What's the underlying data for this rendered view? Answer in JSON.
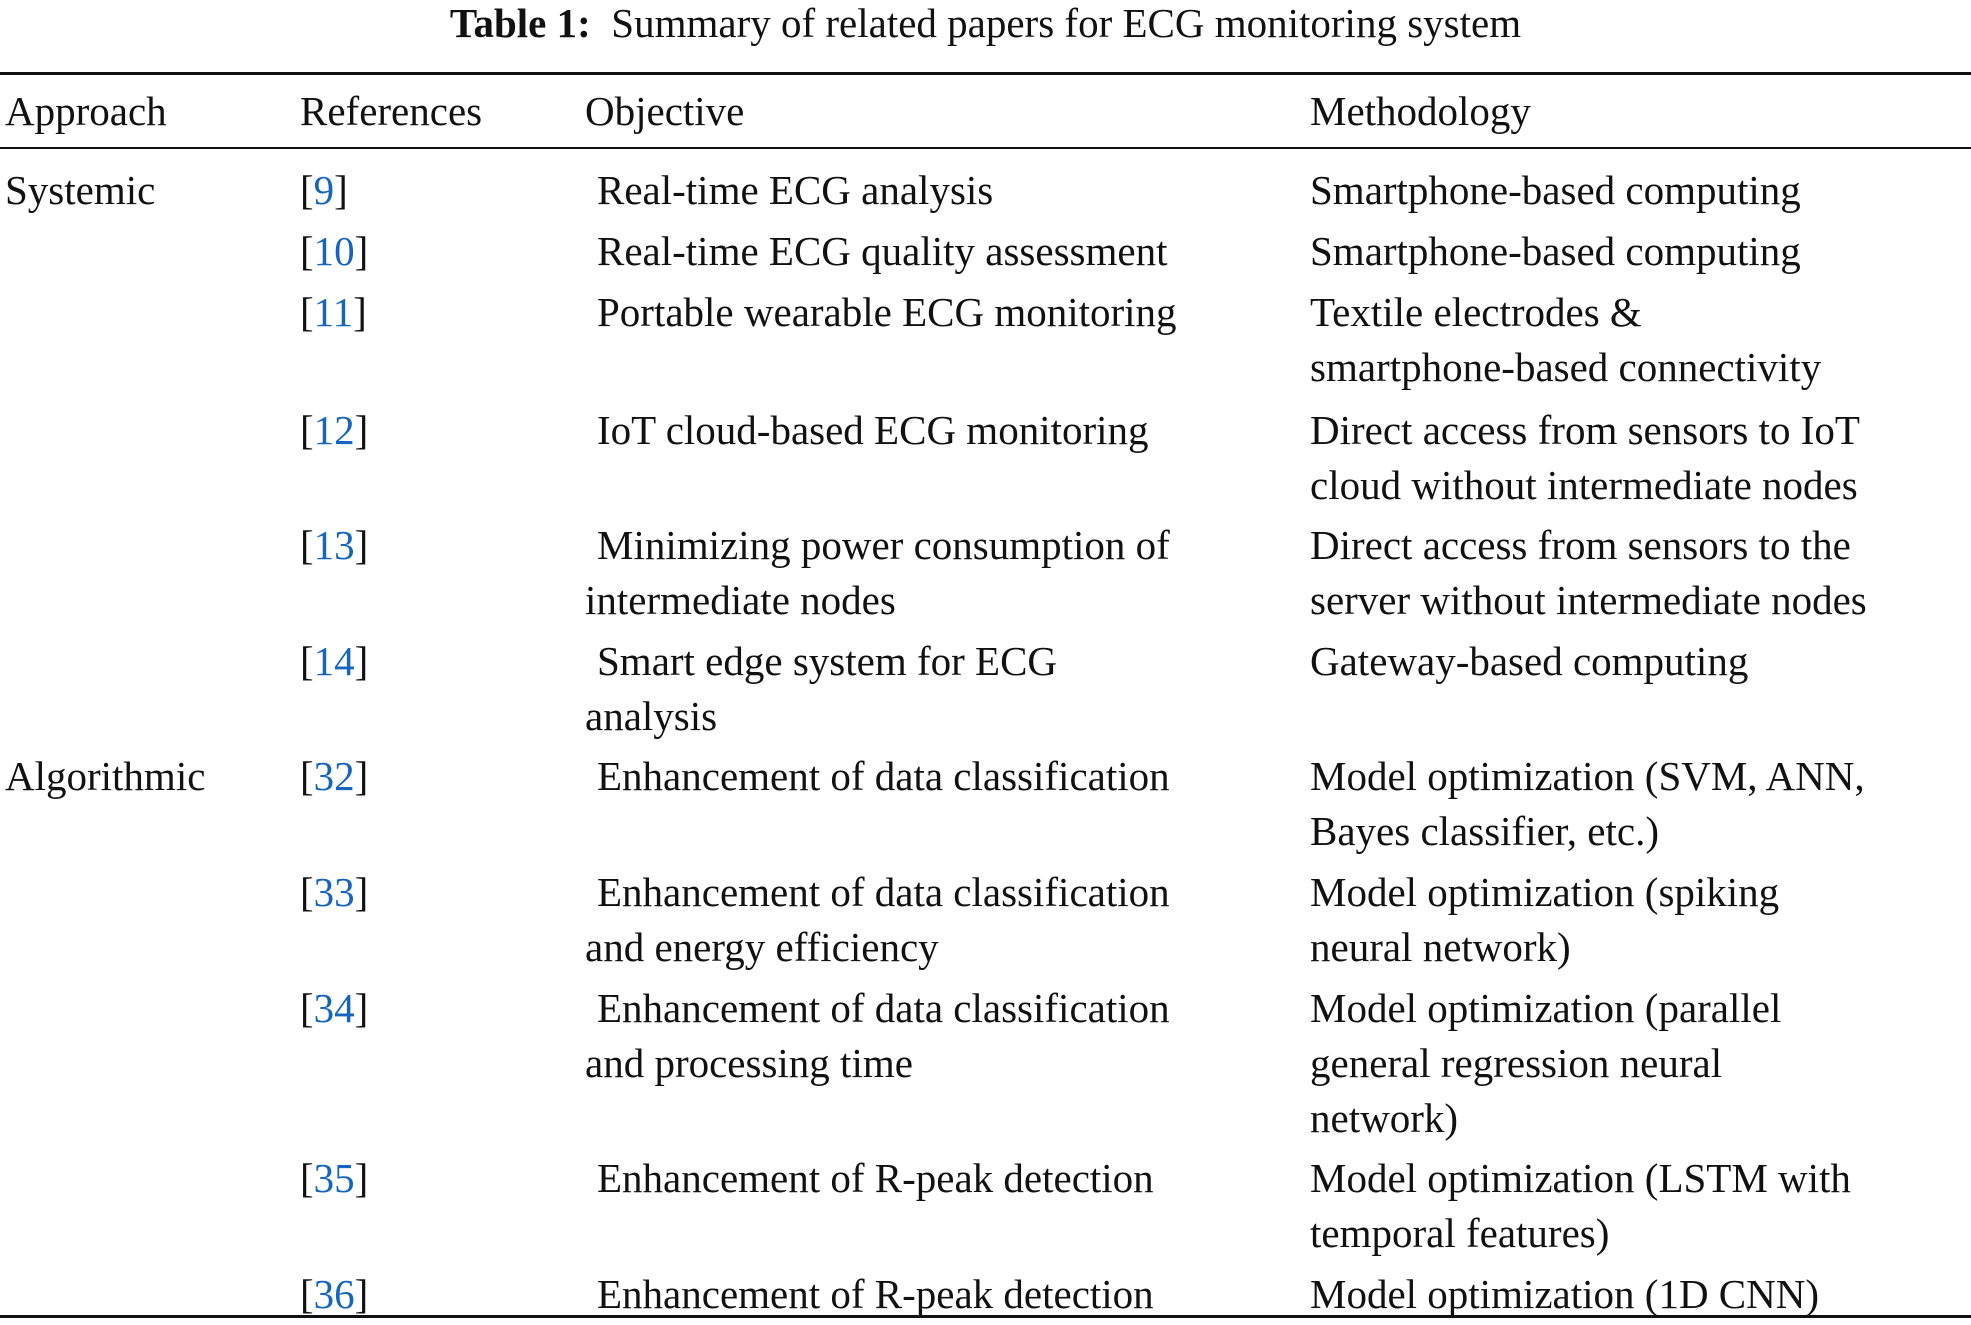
{
  "title": {
    "label": "Table 1:",
    "text": "Summary of related papers for ECG monitoring system"
  },
  "table": {
    "headers": {
      "approach": "Approach",
      "references": "References",
      "objective": "Objective",
      "methodology": "Methodology"
    },
    "groups": [
      {
        "approach": "Systemic"
      },
      {
        "approach": "Algorithmic"
      }
    ],
    "rows": [
      {
        "ref": "9",
        "objective": [
          "Real-time ECG analysis"
        ],
        "methodology": [
          "Smartphone-based computing"
        ]
      },
      {
        "ref": "10",
        "objective": [
          "Real-time ECG quality assessment"
        ],
        "methodology": [
          "Smartphone-based computing"
        ]
      },
      {
        "ref": "11",
        "objective": [
          "Portable wearable ECG monitoring"
        ],
        "methodology": [
          "Textile electrodes &",
          "smartphone-based connectivity"
        ]
      },
      {
        "ref": "12",
        "objective": [
          "IoT cloud-based ECG monitoring"
        ],
        "methodology": [
          "Direct access from sensors to IoT",
          "cloud without intermediate nodes"
        ]
      },
      {
        "ref": "13",
        "objective": [
          "Minimizing power consumption of",
          "intermediate nodes"
        ],
        "methodology": [
          "Direct access from sensors to the",
          "server without intermediate nodes"
        ]
      },
      {
        "ref": "14",
        "objective": [
          "Smart edge system for ECG",
          "analysis"
        ],
        "methodology": [
          "Gateway-based computing"
        ]
      },
      {
        "ref": "32",
        "objective": [
          "Enhancement of data classification"
        ],
        "methodology": [
          "Model optimization (SVM, ANN,",
          "Bayes classifier, etc.)"
        ]
      },
      {
        "ref": "33",
        "objective": [
          "Enhancement of data classification",
          "and energy efficiency"
        ],
        "methodology": [
          "Model optimization (spiking",
          "neural network)"
        ]
      },
      {
        "ref": "34",
        "objective": [
          "Enhancement of data classification",
          "and processing time"
        ],
        "methodology": [
          "Model optimization (parallel",
          "general regression neural",
          "network)"
        ]
      },
      {
        "ref": "35",
        "objective": [
          "Enhancement of R-peak detection"
        ],
        "methodology": [
          "Model optimization (LSTM with",
          "temporal features)"
        ]
      },
      {
        "ref": "36",
        "objective": [
          "Enhancement of R-peak detection"
        ],
        "methodology": [
          "Model optimization (1D CNN)"
        ]
      }
    ]
  },
  "colors": {
    "text": "#111111",
    "link": "#1565c0",
    "rule": "#111111"
  }
}
